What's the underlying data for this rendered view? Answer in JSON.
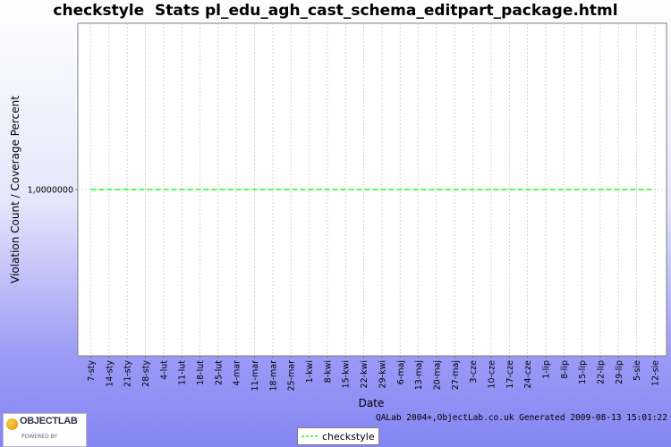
{
  "chart_data": {
    "type": "line",
    "title": "checkstyle  Stats pl_edu_agh_cast_schema_editpart_package.html",
    "xlabel": "Date",
    "ylabel": "Violation Count / Coverage Percent",
    "x": [
      "7-sty",
      "14-sty",
      "21-sty",
      "28-sty",
      "4-lut",
      "11-lut",
      "18-lut",
      "25-lut",
      "4-mar",
      "11-mar",
      "18-mar",
      "25-mar",
      "1-kwi",
      "8-kwi",
      "15-kwi",
      "22-kwi",
      "29-kwi",
      "6-maj",
      "13-maj",
      "20-maj",
      "27-maj",
      "3-cze",
      "10-cze",
      "17-cze",
      "24-cze",
      "1-lip",
      "8-lip",
      "15-lip",
      "22-lip",
      "29-lip",
      "5-sie",
      "12-sie"
    ],
    "y_ticks": [
      "1,0000000"
    ],
    "y_range": [
      0,
      2
    ],
    "series": [
      {
        "name": "checkstyle",
        "color": "#55ff55",
        "style": "dashed",
        "values": [
          1,
          1,
          1,
          1,
          1,
          1,
          1,
          1,
          1,
          1,
          1,
          1,
          1,
          1,
          1,
          1,
          1,
          1,
          1,
          1,
          1,
          1,
          1,
          1,
          1,
          1,
          1,
          1,
          1,
          1,
          1,
          1
        ]
      }
    ],
    "grid": true,
    "legend_position": "bottom-center"
  },
  "footer": "QALab 2004+,ObjectLab.co.uk Generated 2009-08-13 15:01:22",
  "logo": {
    "brand": "OBJECTLAB",
    "tagline": "POWERED BY"
  }
}
